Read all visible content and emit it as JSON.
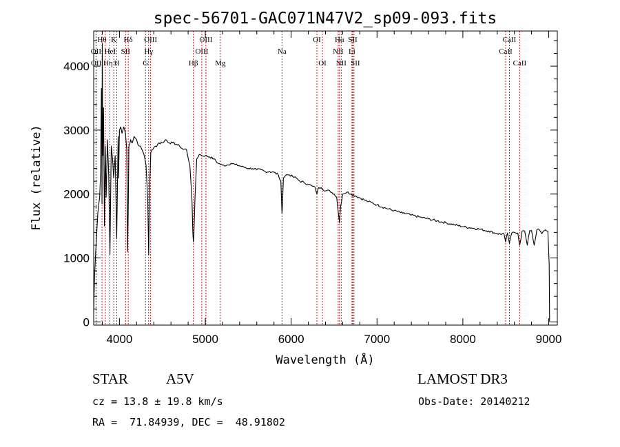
{
  "chart_data": {
    "type": "line",
    "title": "spec-56701-GAC071N47V2_sp09-093.fits",
    "xlabel": "Wavelength (Å)",
    "ylabel": "Flux (relative)",
    "xlim": [
      3700,
      9100
    ],
    "ylim": [
      -50,
      4550
    ],
    "xticks": [
      4000,
      5000,
      6000,
      7000,
      8000,
      9000
    ],
    "yticks": [
      0,
      1000,
      2000,
      3000,
      4000
    ],
    "series": [
      {
        "name": "spectrum",
        "x": [
          3700,
          3710,
          3722,
          3734,
          3748,
          3760,
          3770,
          3780,
          3790,
          3797,
          3800,
          3806,
          3815,
          3825,
          3835,
          3845,
          3860,
          3875,
          3889,
          3905,
          3920,
          3933,
          3950,
          3968,
          3985,
          3990,
          4000,
          4015,
          4030,
          4050,
          4070,
          4085,
          4095,
          4101,
          4110,
          4130,
          4150,
          4170,
          4200,
          4230,
          4260,
          4290,
          4310,
          4330,
          4340,
          4350,
          4365,
          4390,
          4420,
          4460,
          4500,
          4540,
          4580,
          4620,
          4660,
          4700,
          4740,
          4780,
          4820,
          4845,
          4855,
          4861,
          4867,
          4880,
          4900,
          4930,
          4960,
          5000,
          5050,
          5100,
          5150,
          5200,
          5250,
          5300,
          5350,
          5400,
          5450,
          5500,
          5550,
          5600,
          5650,
          5700,
          5750,
          5800,
          5850,
          5880,
          5893,
          5896,
          5910,
          5940,
          5980,
          6020,
          6060,
          6100,
          6150,
          6200,
          6250,
          6280,
          6300,
          6320,
          6350,
          6400,
          6450,
          6500,
          6530,
          6550,
          6563,
          6575,
          6600,
          6650,
          6700,
          6750,
          6800,
          6850,
          6900,
          6950,
          7000,
          7100,
          7200,
          7300,
          7400,
          7500,
          7600,
          7700,
          7800,
          7900,
          8000,
          8100,
          8200,
          8300,
          8400,
          8480,
          8498,
          8520,
          8542,
          8570,
          8600,
          8640,
          8662,
          8690,
          8720,
          8750,
          8780,
          8800,
          8830,
          8862,
          8890,
          8920,
          8960,
          8990,
          9005,
          9010
        ],
        "values": [
          150,
          700,
          1050,
          1350,
          1700,
          1850,
          1950,
          2350,
          3650,
          1850,
          4350,
          2600,
          3350,
          1500,
          2750,
          1950,
          2850,
          2300,
          1050,
          2750,
          2550,
          2250,
          2600,
          1300,
          2900,
          2250,
          3000,
          3050,
          2950,
          3050,
          2950,
          2700,
          1100,
          1650,
          2750,
          2850,
          2800,
          2900,
          2850,
          2750,
          2700,
          2600,
          2450,
          1900,
          1050,
          2050,
          2650,
          2700,
          2750,
          2800,
          2800,
          2850,
          2800,
          2800,
          2780,
          2750,
          2700,
          2700,
          2450,
          1900,
          1400,
          1250,
          1350,
          1950,
          2550,
          2620,
          2600,
          2600,
          2580,
          2550,
          2480,
          2450,
          2450,
          2480,
          2460,
          2440,
          2420,
          2400,
          2400,
          2380,
          2380,
          2350,
          2350,
          2340,
          2300,
          2200,
          1700,
          1750,
          2250,
          2300,
          2300,
          2270,
          2250,
          2200,
          2180,
          2150,
          2120,
          2100,
          2000,
          2100,
          2100,
          2050,
          2050,
          2000,
          1950,
          1700,
          1550,
          1800,
          2000,
          2030,
          2000,
          1970,
          1940,
          1910,
          1880,
          1860,
          1830,
          1780,
          1740,
          1700,
          1670,
          1640,
          1610,
          1580,
          1550,
          1520,
          1490,
          1470,
          1450,
          1420,
          1380,
          1370,
          1250,
          1390,
          1230,
          1390,
          1400,
          1390,
          1200,
          1420,
          1420,
          1200,
          1430,
          1430,
          1200,
          1440,
          1440,
          1380,
          1440,
          1420,
          900,
          0
        ]
      }
    ],
    "lines": [
      {
        "name": "Hθ",
        "wl": 3797,
        "row": 1
      },
      {
        "name": "K",
        "wl": 3934,
        "row": 1
      },
      {
        "name": "Hδ",
        "wl": 4102,
        "row": 1
      },
      {
        "name": "OIII",
        "wl": 4363,
        "row": 1
      },
      {
        "name": "OIII",
        "wl": 5007,
        "row": 1
      },
      {
        "name": "OI",
        "wl": 6300,
        "row": 1
      },
      {
        "name": "Hα",
        "wl": 6563,
        "row": 1
      },
      {
        "name": "SII",
        "wl": 6717,
        "row": 1
      },
      {
        "name": "CaII",
        "wl": 8542,
        "row": 1
      },
      {
        "name": "OII",
        "wl": 3727,
        "row": 2
      },
      {
        "name": "HeI",
        "wl": 3889,
        "row": 2
      },
      {
        "name": "SII",
        "wl": 4072,
        "row": 2
      },
      {
        "name": "Hγ",
        "wl": 4340,
        "row": 2
      },
      {
        "name": "OIII",
        "wl": 4959,
        "row": 2
      },
      {
        "name": "Na",
        "wl": 5893,
        "row": 2
      },
      {
        "name": "NII",
        "wl": 6548,
        "row": 2
      },
      {
        "name": "Li",
        "wl": 6708,
        "row": 2
      },
      {
        "name": "CaII",
        "wl": 8498,
        "row": 2
      },
      {
        "name": "OII",
        "wl": 3729,
        "row": 3
      },
      {
        "name": "Hη",
        "wl": 3835,
        "row": 3
      },
      {
        "name": "H",
        "wl": 3969,
        "row": 3
      },
      {
        "name": "G",
        "wl": 4304,
        "row": 3
      },
      {
        "name": "Hβ",
        "wl": 4861,
        "row": 3
      },
      {
        "name": "Mg",
        "wl": 5175,
        "row": 3
      },
      {
        "name": "OI",
        "wl": 6364,
        "row": 3
      },
      {
        "name": "NII",
        "wl": 6583,
        "row": 3
      },
      {
        "name": "SII",
        "wl": 6731,
        "row": 3
      },
      {
        "name": "CaII",
        "wl": 8662,
        "row": 3
      }
    ]
  },
  "info": {
    "class": "STAR",
    "subclass": "A5V",
    "survey": "LAMOST DR3",
    "cz": "cz = 13.8 ± 19.8 km/s",
    "obs_date": "Obs-Date: 20140212",
    "radec": "RA =  71.84939, DEC =  48.91802"
  },
  "colors": {
    "line_marker": "#cc0000",
    "spectrum": "#000000"
  }
}
